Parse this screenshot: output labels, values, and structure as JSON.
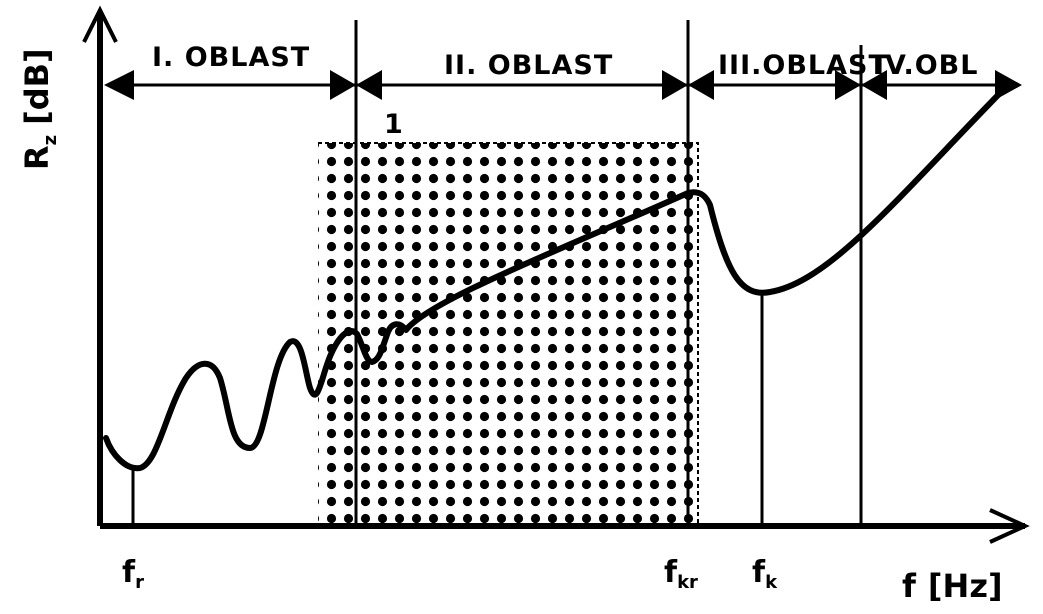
{
  "y_axis": {
    "symbol": "R",
    "subscript": "z",
    "unit": "[dB]"
  },
  "x_axis": {
    "symbol": "f",
    "unit": "[Hz]"
  },
  "regions": [
    {
      "label": "I. OBLAST"
    },
    {
      "label": "II. OBLAST"
    },
    {
      "label": "III.OBLAST"
    },
    {
      "label": "IV.OBL"
    }
  ],
  "shaded_marker": "1",
  "frequency_markers": [
    {
      "symbol": "f",
      "subscript": "r"
    },
    {
      "symbol": "f",
      "subscript": "kr"
    },
    {
      "symbol": "f",
      "subscript": "k"
    }
  ],
  "colors": {
    "ink": "#000000",
    "background": "#ffffff"
  }
}
